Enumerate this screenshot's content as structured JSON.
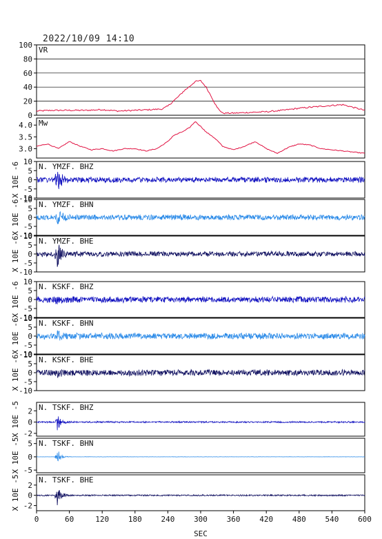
{
  "header": {
    "timestamp": "2022/10/09  14:10"
  },
  "x_axis": {
    "label": "SEC",
    "range": [
      0,
      600
    ],
    "ticks": [
      0,
      60,
      120,
      180,
      240,
      300,
      360,
      420,
      480,
      540,
      600
    ]
  },
  "colors": {
    "frame": "#000000",
    "gridline": "#000000",
    "vr_mw_line": "#e01040",
    "bhz": "#1010c0",
    "bhn": "#2a8ae8",
    "bhe": "#101060"
  },
  "chart_data": [
    {
      "type": "line",
      "label": "VR",
      "ylim": [
        0,
        100
      ],
      "yticks": [
        0,
        20,
        40,
        60,
        80,
        100
      ],
      "grid": true,
      "x": [
        0,
        30,
        60,
        90,
        120,
        150,
        180,
        210,
        230,
        240,
        250,
        260,
        270,
        280,
        290,
        300,
        310,
        320,
        330,
        340,
        360,
        390,
        420,
        450,
        480,
        510,
        540,
        560,
        580,
        600
      ],
      "y": [
        6,
        7,
        7,
        7,
        8,
        6,
        7,
        8,
        9,
        13,
        20,
        27,
        35,
        41,
        48,
        49,
        40,
        26,
        11,
        3,
        3,
        4,
        5,
        7,
        10,
        12,
        14,
        15,
        11,
        7
      ]
    },
    {
      "type": "line",
      "label": "Mw",
      "ylim": [
        2.6,
        4.3
      ],
      "yticks": [
        3.0,
        3.5,
        4.0
      ],
      "ytick_labels": [
        "3.0",
        "3.5",
        "4.0"
      ],
      "x": [
        0,
        20,
        40,
        60,
        80,
        100,
        120,
        140,
        160,
        180,
        200,
        220,
        240,
        250,
        260,
        270,
        280,
        290,
        300,
        310,
        320,
        330,
        340,
        360,
        380,
        400,
        420,
        440,
        460,
        480,
        500,
        520,
        540,
        560,
        580,
        600
      ],
      "y": [
        3.1,
        3.2,
        3.0,
        3.3,
        3.1,
        2.95,
        3.0,
        2.9,
        3.0,
        3.0,
        2.9,
        3.0,
        3.3,
        3.55,
        3.65,
        3.75,
        3.9,
        4.15,
        3.95,
        3.7,
        3.55,
        3.35,
        3.1,
        2.95,
        3.1,
        3.3,
        3.0,
        2.8,
        3.05,
        3.2,
        3.15,
        3.0,
        2.95,
        2.9,
        2.85,
        2.8
      ]
    },
    {
      "type": "line",
      "label": "N. YMZF. BHZ",
      "scale_label": "X 10E -6",
      "ylim": [
        -10,
        10
      ],
      "yticks": [
        -10,
        -5,
        0,
        5,
        10
      ],
      "color_key": "bhz",
      "amplitude": 1.6,
      "event_time": 38,
      "event_peak": 8
    },
    {
      "type": "line",
      "label": "N. YMZF. BHN",
      "scale_label": "X 10E -6",
      "ylim": [
        -10,
        10
      ],
      "yticks": [
        -10,
        -5,
        0,
        5,
        10
      ],
      "color_key": "bhn",
      "amplitude": 1.6,
      "event_time": 38,
      "event_peak": 6
    },
    {
      "type": "line",
      "label": "N. YMZF. BHE",
      "scale_label": "X 10E -6",
      "ylim": [
        -10,
        10
      ],
      "yticks": [
        -10,
        -5,
        0,
        5,
        10
      ],
      "color_key": "bhe",
      "amplitude": 1.5,
      "event_time": 38,
      "event_peak": 9
    },
    {
      "type": "line",
      "label": "N. KSKF. BHZ",
      "scale_label": "X 10E -6",
      "ylim": [
        -10,
        10
      ],
      "yticks": [
        -10,
        -5,
        0,
        5,
        10
      ],
      "color_key": "bhz",
      "amplitude": 1.8,
      "event_time": 38,
      "event_peak": 2
    },
    {
      "type": "line",
      "label": "N. KSKF. BHN",
      "scale_label": "X 10E -6",
      "ylim": [
        -10,
        10
      ],
      "yticks": [
        -10,
        -5,
        0,
        5,
        10
      ],
      "color_key": "bhn",
      "amplitude": 1.8,
      "event_time": 38,
      "event_peak": 2
    },
    {
      "type": "line",
      "label": "N. KSKF. BHE",
      "scale_label": "X 10E -6",
      "ylim": [
        -10,
        10
      ],
      "yticks": [
        -10,
        -5,
        0,
        5,
        10
      ],
      "color_key": "bhe",
      "amplitude": 1.8,
      "event_time": 38,
      "event_peak": 2
    },
    {
      "type": "line",
      "label": "N. TSKF. BHZ",
      "scale_label": "X 10E -5",
      "ylim": [
        -2.5,
        3.5
      ],
      "yticks": [
        -2,
        0,
        2
      ],
      "color_key": "bhz",
      "amplitude": 0.15,
      "event_time": 38,
      "event_peak": 1.5
    },
    {
      "type": "line",
      "label": "N. TSKF. BHN",
      "scale_label": "X 10E -5",
      "ylim": [
        -6,
        7
      ],
      "yticks": [
        -5,
        0,
        5
      ],
      "color_key": "bhn",
      "amplitude": 0.05,
      "event_time": 38,
      "event_peak": 3
    },
    {
      "type": "line",
      "label": "N. TSKF. BHE",
      "scale_label": "X 10E -5",
      "ylim": [
        -3,
        4
      ],
      "yticks": [
        -2,
        0,
        2
      ],
      "color_key": "bhe",
      "amplitude": 0.15,
      "event_time": 38,
      "event_peak": 2
    }
  ]
}
